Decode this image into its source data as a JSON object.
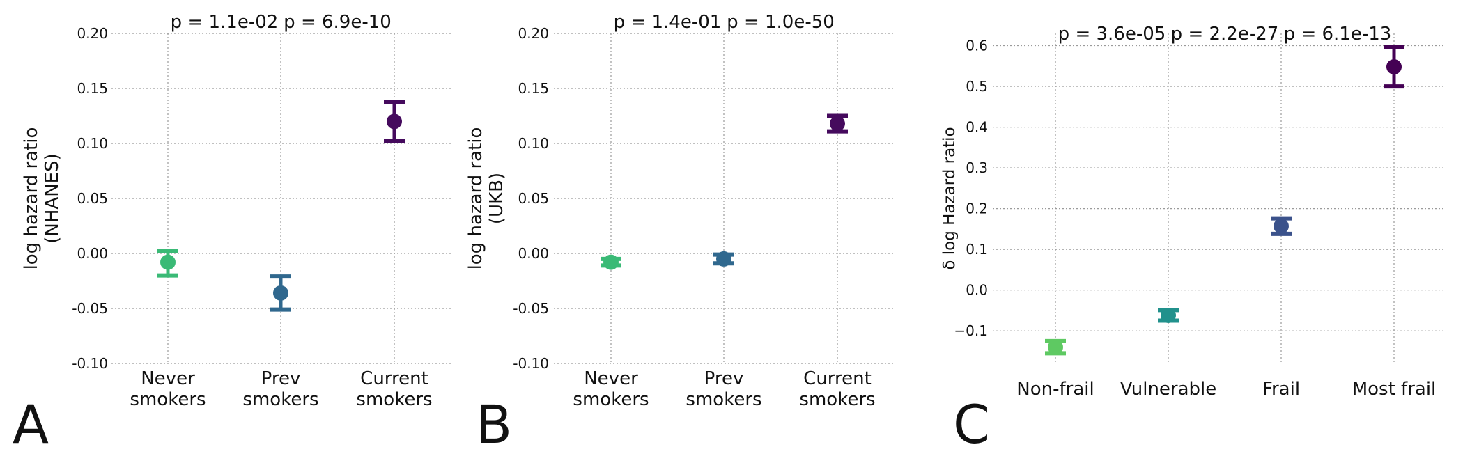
{
  "chart_data": [
    {
      "type": "scatter",
      "panel_label": "A",
      "categories": [
        "Never\nsmokers",
        "Prev\nsmokers",
        "Current\nsmokers"
      ],
      "values": [
        -0.008,
        -0.036,
        0.12
      ],
      "lower": [
        -0.02,
        -0.051,
        0.102
      ],
      "upper": [
        0.002,
        -0.021,
        0.138
      ],
      "colors": [
        "#3aba76",
        "#30688e",
        "#450a5d"
      ],
      "p_values": [
        "p = 1.1e-02",
        "p = 6.9e-10"
      ],
      "ylabel": "log hazard ratio\n(NHANES)",
      "ylim": [
        -0.1,
        0.2
      ],
      "yticks": [
        -0.1,
        -0.05,
        0.0,
        0.05,
        0.1,
        0.15,
        0.2
      ],
      "ytick_labels": [
        "-0.10",
        "-0.05",
        "0.00",
        "0.05",
        "0.10",
        "0.15",
        "0.20"
      ],
      "grid": true
    },
    {
      "type": "scatter",
      "panel_label": "B",
      "categories": [
        "Never\nsmokers",
        "Prev\nsmokers",
        "Current\nsmokers"
      ],
      "values": [
        -0.008,
        -0.005,
        0.118
      ],
      "lower": [
        -0.011,
        -0.009,
        0.111
      ],
      "upper": [
        -0.005,
        -0.001,
        0.125
      ],
      "colors": [
        "#3aba76",
        "#30688e",
        "#450a5d"
      ],
      "p_values": [
        "p = 1.4e-01",
        "p = 1.0e-50"
      ],
      "ylabel": "log hazard ratio\n(UKB)",
      "ylim": [
        -0.1,
        0.2
      ],
      "yticks": [
        -0.1,
        -0.05,
        0.0,
        0.05,
        0.1,
        0.15,
        0.2
      ],
      "ytick_labels": [
        "-0.10",
        "-0.05",
        "0.00",
        "0.05",
        "0.10",
        "0.15",
        "0.20"
      ],
      "grid": true
    },
    {
      "type": "scatter",
      "panel_label": "C",
      "categories": [
        "Non-frail",
        "Vulnerable",
        "Frail",
        "Most frail"
      ],
      "values": [
        -0.14,
        -0.062,
        0.157,
        0.548
      ],
      "lower": [
        -0.155,
        -0.075,
        0.138,
        0.5
      ],
      "upper": [
        -0.125,
        -0.049,
        0.176,
        0.596
      ],
      "colors": [
        "#5ec962",
        "#21918c",
        "#3b528b",
        "#440154"
      ],
      "p_values": [
        "p = 3.6e-05",
        "p = 2.2e-27",
        "p = 6.1e-13"
      ],
      "ylabel": "δ log Hazard ratio",
      "ylim": [
        -0.18,
        0.63
      ],
      "yticks": [
        -0.1,
        0.0,
        0.1,
        0.2,
        0.3,
        0.4,
        0.5,
        0.6
      ],
      "ytick_labels": [
        "−0.1",
        "0.0",
        "0.1",
        "0.2",
        "0.3",
        "0.4",
        "0.5",
        "0.6"
      ],
      "grid": true
    }
  ]
}
